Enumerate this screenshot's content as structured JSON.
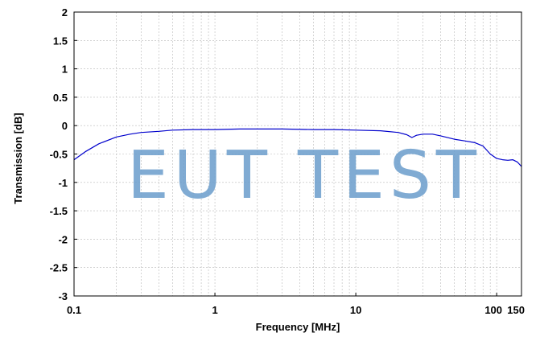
{
  "watermark": "EUT TEST",
  "chart_data": {
    "type": "line",
    "title": "",
    "xlabel": "Frequency [MHz]",
    "ylabel": "Transmission [dB]",
    "xscale": "log",
    "xlim": [
      0.1,
      150
    ],
    "ylim": [
      -3,
      2
    ],
    "grid": true,
    "legend": "none",
    "x_tick_labels": [
      "0.1",
      "1",
      "10",
      "100",
      "150"
    ],
    "x_ticks": [
      0.1,
      1,
      10,
      100,
      150
    ],
    "y_ticks": [
      2,
      1.5,
      1,
      0.5,
      0,
      -0.5,
      -1,
      -1.5,
      -2,
      -2.5,
      -3
    ],
    "y_tick_labels": [
      "2",
      "1.5",
      "1",
      "0.5",
      "0",
      "-0.5",
      "-1",
      "-1.5",
      "-2",
      "-2.5",
      "-3"
    ],
    "line_color": "#0000cc",
    "series": [
      {
        "x": [
          0.1,
          0.12,
          0.15,
          0.2,
          0.25,
          0.3,
          0.4,
          0.5,
          0.7,
          1,
          1.5,
          2,
          3,
          5,
          7,
          10,
          15,
          20,
          23,
          25,
          27,
          30,
          35,
          40,
          50,
          60,
          70,
          80,
          90,
          100,
          110,
          120,
          130,
          140,
          150
        ],
        "values": [
          -0.6,
          -0.46,
          -0.32,
          -0.2,
          -0.15,
          -0.12,
          -0.1,
          -0.08,
          -0.07,
          -0.07,
          -0.06,
          -0.06,
          -0.06,
          -0.07,
          -0.07,
          -0.08,
          -0.09,
          -0.12,
          -0.16,
          -0.21,
          -0.17,
          -0.15,
          -0.15,
          -0.18,
          -0.24,
          -0.27,
          -0.3,
          -0.36,
          -0.5,
          -0.58,
          -0.6,
          -0.61,
          -0.6,
          -0.64,
          -0.72
        ]
      }
    ]
  }
}
